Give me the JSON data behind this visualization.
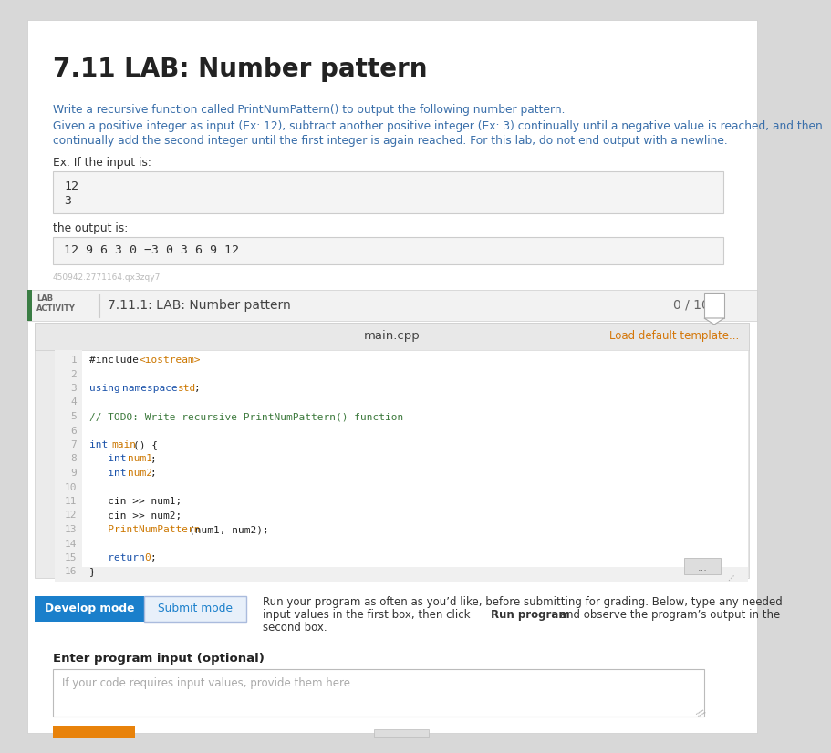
{
  "title": "7.11 LAB: Number pattern",
  "bg_color": "#d8d8d8",
  "content_bg": "#ffffff",
  "desc1": "Write a recursive function called PrintNumPattern() to output the following number pattern.",
  "desc2_line1": "Given a positive integer as input (Ex: 12), subtract another positive integer (Ex: 3) continually until a negative value is reached, and then",
  "desc2_line2": "continually add the second integer until the first integer is again reached. For this lab, do not end output with a newline.",
  "ex_input_label": "Ex. If the input is:",
  "output_label": "the output is:",
  "output_box_content": "12 9 6 3 0 −3 0 3 6 9 12",
  "watermark": "450942.2771164.qx3zqy7",
  "lab_title": "7.11.1: LAB: Number pattern",
  "lab_score": "0 / 10",
  "file_tab": "main.cpp",
  "load_template": "Load default template...",
  "green_bar_color": "#3a7d44",
  "lab_header_bg": "#f2f2f2",
  "editor_bg": "#f8f8f8",
  "editor_header_bg": "#eeeeee",
  "btn_develop_bg": "#1a7fcb",
  "btn_submit_text_color": "#1a7fcb",
  "run_text_color": "#333333",
  "input_placeholder": "If your code requires input values, provide them here.",
  "orange_btn_color": "#e8820a",
  "code_text_color": "#222222",
  "code_comment_color": "#3d7a3d",
  "code_keyword_color": "#1a52aa",
  "code_type_color": "#cc7700",
  "code_linenum_color": "#aaaaaa",
  "body_link_color": "#3a6faa"
}
